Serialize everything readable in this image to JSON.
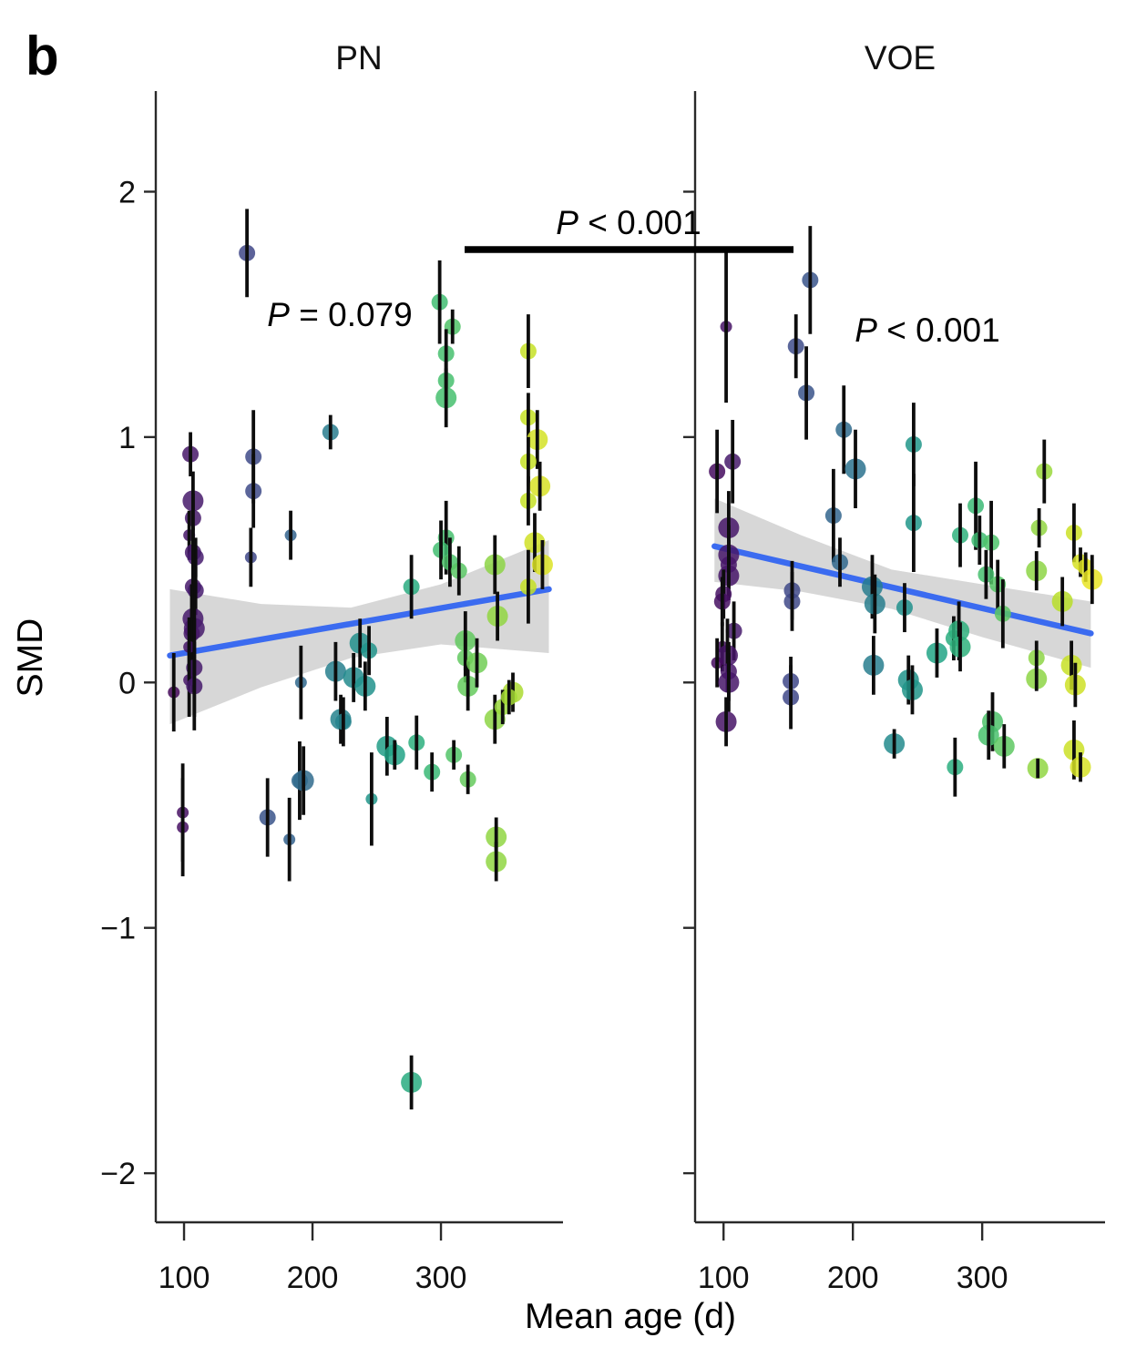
{
  "figure": {
    "panel_letter": "b",
    "ylabel": "SMD",
    "xlabel": "Mean age (d)",
    "comparison_label": "P < 0.001",
    "x_domain": [
      78,
      395
    ],
    "y_domain": [
      -2.2,
      2.41
    ],
    "x_ticks": [
      100,
      200,
      300
    ],
    "x_tick_labels": [
      "100",
      "200",
      "300"
    ],
    "y_ticks": [
      2,
      1,
      0,
      -1,
      -2
    ],
    "y_tick_labels": [
      "2",
      "1",
      "0",
      "−1",
      "−2"
    ],
    "colors": {
      "regression_line": "#3b6bf0",
      "ci_band": "#d4d4d4",
      "error_bar": "#0d0d0d",
      "axis": "#2a2a2a",
      "viridis_stops": [
        [
          0.0,
          "#440154"
        ],
        [
          0.1,
          "#482475"
        ],
        [
          0.2,
          "#414487"
        ],
        [
          0.3,
          "#355f8d"
        ],
        [
          0.4,
          "#2a788e"
        ],
        [
          0.5,
          "#21918c"
        ],
        [
          0.6,
          "#22a884"
        ],
        [
          0.7,
          "#44bf70"
        ],
        [
          0.8,
          "#7ad151"
        ],
        [
          0.9,
          "#bddf26"
        ],
        [
          1.0,
          "#fde725"
        ]
      ],
      "color_domain": [
        85,
        395
      ]
    }
  },
  "chart_data": [
    {
      "type": "scatter",
      "title": "PN",
      "p_label": "P = 0.079",
      "xlabel": "Mean age (d)",
      "ylabel": "SMD",
      "x_range": [
        78,
        395
      ],
      "y_range": [
        -2.2,
        2.41
      ],
      "regression": {
        "x": [
          89,
          384
        ],
        "y": [
          0.11,
          0.38
        ]
      },
      "ci_band": [
        [
          89,
          0.38,
          -0.17
        ],
        [
          160,
          0.32,
          -0.02
        ],
        [
          230,
          0.305,
          0.1
        ],
        [
          300,
          0.4,
          0.155
        ],
        [
          384,
          0.58,
          0.12
        ]
      ],
      "points_format": [
        "mean_age_d",
        "smd",
        "err_half",
        "size_class"
      ],
      "points": [
        [
          105,
          0.93,
          0.09,
          2
        ],
        [
          149,
          1.75,
          0.18,
          2
        ],
        [
          154,
          0.92,
          0.19,
          2
        ],
        [
          154,
          0.78,
          0.15,
          2
        ],
        [
          214,
          1.02,
          0.07,
          2
        ],
        [
          107,
          0.74,
          0.12,
          3
        ],
        [
          107,
          0.67,
          0.1,
          2
        ],
        [
          104,
          0.6,
          0.1,
          1
        ],
        [
          107,
          0.53,
          0.1,
          2
        ],
        [
          109,
          0.51,
          0.08,
          2
        ],
        [
          107,
          0.39,
          0.15,
          2
        ],
        [
          109,
          0.375,
          0.1,
          2
        ],
        [
          107,
          0.26,
          0.3,
          3
        ],
        [
          108,
          0.22,
          0.25,
          3
        ],
        [
          106,
          0.2,
          0.2,
          2
        ],
        [
          104,
          0.145,
          0.12,
          1
        ],
        [
          108,
          0.06,
          0.2,
          2
        ],
        [
          104,
          0.01,
          0.15,
          1
        ],
        [
          108,
          -0.015,
          0.18,
          2
        ],
        [
          92,
          -0.04,
          0.16,
          1
        ],
        [
          152,
          0.51,
          0.12,
          1
        ],
        [
          183,
          0.6,
          0.1,
          1
        ],
        [
          99,
          -0.53,
          0.2,
          1
        ],
        [
          99,
          -0.59,
          0.2,
          1
        ],
        [
          165,
          -0.55,
          0.16,
          2
        ],
        [
          182,
          -0.64,
          0.17,
          1
        ],
        [
          191,
          0.0,
          0.15,
          1
        ],
        [
          218,
          0.045,
          0.12,
          3
        ],
        [
          232,
          0.02,
          0.1,
          3
        ],
        [
          241,
          -0.015,
          0.1,
          3
        ],
        [
          237,
          0.16,
          0.1,
          3
        ],
        [
          244,
          0.13,
          0.1,
          2
        ],
        [
          222,
          -0.15,
          0.1,
          3
        ],
        [
          224,
          -0.16,
          0.1,
          2
        ],
        [
          190,
          -0.4,
          0.16,
          2
        ],
        [
          193,
          -0.4,
          0.14,
          3
        ],
        [
          246,
          -0.475,
          0.19,
          1
        ],
        [
          258,
          -0.26,
          0.12,
          3
        ],
        [
          299,
          1.55,
          0.17,
          2
        ],
        [
          309,
          1.45,
          0.07,
          2
        ],
        [
          304,
          1.34,
          0.1,
          2
        ],
        [
          304,
          1.23,
          0.08,
          2
        ],
        [
          304,
          1.16,
          0.12,
          3
        ],
        [
          304,
          0.59,
          0.15,
          2
        ],
        [
          300,
          0.54,
          0.12,
          2
        ],
        [
          307,
          0.49,
          0.1,
          2
        ],
        [
          314,
          0.455,
          0.1,
          2
        ],
        [
          277,
          0.39,
          0.13,
          2
        ],
        [
          368,
          1.35,
          0.15,
          2
        ],
        [
          368,
          1.08,
          0.1,
          2
        ],
        [
          375,
          0.99,
          0.12,
          3
        ],
        [
          368,
          0.9,
          0.1,
          2
        ],
        [
          377,
          0.8,
          0.1,
          3
        ],
        [
          368,
          0.74,
          0.1,
          2
        ],
        [
          373,
          0.57,
          0.12,
          3
        ],
        [
          379,
          0.48,
          0.1,
          3
        ],
        [
          368,
          0.39,
          0.15,
          2
        ],
        [
          342,
          0.48,
          0.12,
          3
        ],
        [
          344,
          0.27,
          0.1,
          3
        ],
        [
          319,
          0.17,
          0.12,
          3
        ],
        [
          319,
          0.1,
          0.1,
          2
        ],
        [
          321,
          -0.015,
          0.1,
          3
        ],
        [
          328,
          0.08,
          0.1,
          3
        ],
        [
          356,
          -0.04,
          0.08,
          3
        ],
        [
          342,
          -0.15,
          0.1,
          3
        ],
        [
          348,
          -0.1,
          0.07,
          2
        ],
        [
          353,
          -0.06,
          0.07,
          2
        ],
        [
          264,
          -0.295,
          0.06,
          3
        ],
        [
          281,
          -0.245,
          0.11,
          2
        ],
        [
          293,
          -0.365,
          0.08,
          2
        ],
        [
          310,
          -0.295,
          0.06,
          2
        ],
        [
          321,
          -0.395,
          0.06,
          2
        ],
        [
          343,
          -0.63,
          0.08,
          3
        ],
        [
          343,
          -0.73,
          0.08,
          3
        ],
        [
          277,
          -1.63,
          0.11,
          3
        ]
      ]
    },
    {
      "type": "scatter",
      "title": "VOE",
      "p_label": "P < 0.001",
      "xlabel": "Mean age (d)",
      "ylabel": "SMD",
      "x_range": [
        78,
        395
      ],
      "y_range": [
        -2.2,
        2.41
      ],
      "regression": {
        "x": [
          93,
          384
        ],
        "y": [
          0.555,
          0.2
        ]
      },
      "ci_band": [
        [
          93,
          0.75,
          0.41
        ],
        [
          160,
          0.6,
          0.37
        ],
        [
          230,
          0.46,
          0.3
        ],
        [
          300,
          0.4,
          0.185
        ],
        [
          384,
          0.33,
          0.06
        ]
      ],
      "points_format": [
        "mean_age_d",
        "smd",
        "err_half",
        "size_class"
      ],
      "points": [
        [
          102,
          1.45,
          0.31,
          1
        ],
        [
          167,
          1.64,
          0.22,
          2
        ],
        [
          156,
          1.37,
          0.13,
          2
        ],
        [
          164,
          1.18,
          0.19,
          2
        ],
        [
          193,
          1.03,
          0.18,
          2
        ],
        [
          202,
          0.87,
          0.16,
          3
        ],
        [
          95,
          0.86,
          0.17,
          2
        ],
        [
          107,
          0.9,
          0.17,
          2
        ],
        [
          185,
          0.68,
          0.19,
          2
        ],
        [
          104,
          0.63,
          0.15,
          3
        ],
        [
          104,
          0.52,
          0.12,
          3
        ],
        [
          104,
          0.48,
          0.1,
          2
        ],
        [
          104,
          0.435,
          0.1,
          3
        ],
        [
          100,
          0.36,
          0.1,
          2
        ],
        [
          99,
          0.33,
          0.1,
          2
        ],
        [
          108,
          0.21,
          0.12,
          2
        ],
        [
          99,
          0.145,
          0.1,
          1
        ],
        [
          103,
          0.11,
          0.15,
          3
        ],
        [
          95,
          0.08,
          0.1,
          1
        ],
        [
          104,
          0.045,
          0.12,
          2
        ],
        [
          104,
          0.0,
          0.12,
          3
        ],
        [
          102,
          -0.16,
          0.1,
          3
        ],
        [
          153,
          0.375,
          0.12,
          2
        ],
        [
          153,
          0.33,
          0.12,
          2
        ],
        [
          152,
          0.005,
          0.1,
          2
        ],
        [
          152,
          -0.06,
          0.13,
          2
        ],
        [
          190,
          0.49,
          0.1,
          2
        ],
        [
          215,
          0.39,
          0.13,
          3
        ],
        [
          217,
          0.32,
          0.12,
          3
        ],
        [
          240,
          0.305,
          0.1,
          2
        ],
        [
          216,
          0.07,
          0.12,
          3
        ],
        [
          243,
          0.01,
          0.1,
          3
        ],
        [
          247,
          0.97,
          0.17,
          2
        ],
        [
          247,
          0.65,
          0.2,
          2
        ],
        [
          232,
          -0.25,
          0.06,
          3
        ],
        [
          246,
          -0.03,
          0.1,
          3
        ],
        [
          265,
          0.12,
          0.1,
          3
        ],
        [
          278,
          0.18,
          0.09,
          2
        ],
        [
          283,
          0.6,
          0.13,
          2
        ],
        [
          295,
          0.72,
          0.18,
          2
        ],
        [
          298,
          0.58,
          0.1,
          2
        ],
        [
          307,
          0.57,
          0.17,
          2
        ],
        [
          303,
          0.44,
          0.1,
          2
        ],
        [
          312,
          0.4,
          0.1,
          2
        ],
        [
          348,
          0.86,
          0.13,
          2
        ],
        [
          344,
          0.63,
          0.08,
          2
        ],
        [
          371,
          0.61,
          0.12,
          2
        ],
        [
          342,
          0.455,
          0.08,
          3
        ],
        [
          376,
          0.49,
          0.06,
          2
        ],
        [
          380,
          0.47,
          0.06,
          2
        ],
        [
          385,
          0.42,
          0.1,
          3
        ],
        [
          362,
          0.33,
          0.1,
          3
        ],
        [
          316,
          0.28,
          0.14,
          2
        ],
        [
          282,
          0.21,
          0.12,
          3
        ],
        [
          283,
          0.145,
          0.1,
          3
        ],
        [
          342,
          0.1,
          0.07,
          2
        ],
        [
          369,
          0.07,
          0.1,
          3
        ],
        [
          342,
          0.015,
          0.05,
          3
        ],
        [
          372,
          -0.01,
          0.09,
          3
        ],
        [
          308,
          -0.16,
          0.12,
          3
        ],
        [
          305,
          -0.215,
          0.1,
          3
        ],
        [
          317,
          -0.26,
          0.09,
          3
        ],
        [
          279,
          -0.345,
          0.12,
          2
        ],
        [
          343,
          -0.35,
          0.04,
          3
        ],
        [
          371,
          -0.275,
          0.12,
          3
        ],
        [
          376,
          -0.345,
          0.06,
          3
        ]
      ]
    }
  ]
}
